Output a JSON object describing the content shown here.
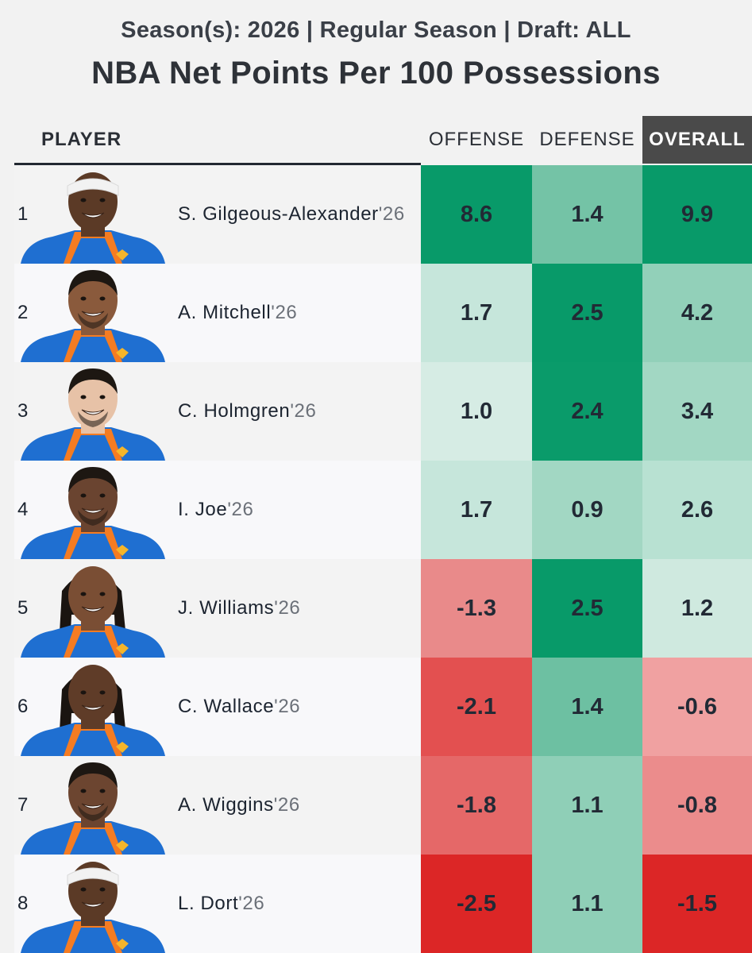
{
  "header": {
    "subtitle": "Season(s): 2026 | Regular Season | Draft: ALL",
    "title": "NBA Net Points Per 100 Possessions"
  },
  "columns": {
    "player": "PLAYER",
    "offense": "OFFENSE",
    "defense": "DEFENSE",
    "overall": "OVERALL"
  },
  "colors": {
    "green_strong": "#0a9b6a",
    "green_light": "#c7e7dc",
    "red_strong": "#dc2626",
    "red_light": "#f1a3a3",
    "header_active": "#4a4a4a"
  },
  "chart_data": {
    "type": "table",
    "columns": [
      "OFFENSE",
      "DEFENSE",
      "OVERALL"
    ],
    "rows": [
      {
        "rank": "1",
        "name": "S. Gilgeous-Alexander",
        "year": "'26",
        "offense": "8.6",
        "defense": "1.4",
        "overall": "9.9",
        "colors": [
          "#089a69",
          "#74c3a6",
          "#089a69"
        ],
        "skin": "#5b3a26",
        "hair": "none",
        "headband": true
      },
      {
        "rank": "2",
        "name": "A. Mitchell",
        "year": "'26",
        "offense": "1.7",
        "defense": "2.5",
        "overall": "4.2",
        "colors": [
          "#c6e6db",
          "#089a69",
          "#92d0b9"
        ],
        "skin": "#8a5a3c",
        "hair": "short",
        "headband": false
      },
      {
        "rank": "3",
        "name": "C. Holmgren",
        "year": "'26",
        "offense": "1.0",
        "defense": "2.4",
        "overall": "3.4",
        "colors": [
          "#d6ece4",
          "#0a9b6a",
          "#a2d7c3"
        ],
        "skin": "#e7c2a7",
        "hair": "short",
        "headband": false
      },
      {
        "rank": "4",
        "name": "I. Joe",
        "year": "'26",
        "offense": "1.7",
        "defense": "0.9",
        "overall": "2.6",
        "colors": [
          "#c6e6db",
          "#a2d7c3",
          "#b8e1d2"
        ],
        "skin": "#6a4430",
        "hair": "short",
        "headband": false
      },
      {
        "rank": "5",
        "name": "J. Williams",
        "year": "'26",
        "offense": "-1.3",
        "defense": "2.5",
        "overall": "1.2",
        "colors": [
          "#e98a8a",
          "#089a69",
          "#cfe9df"
        ],
        "skin": "#7a4e34",
        "hair": "locs",
        "headband": false
      },
      {
        "rank": "6",
        "name": "C. Wallace",
        "year": "'26",
        "offense": "-2.1",
        "defense": "1.4",
        "overall": "-0.6",
        "colors": [
          "#e35050",
          "#6dc0a2",
          "#f0a1a1"
        ],
        "skin": "#5f3c28",
        "hair": "locs",
        "headband": false
      },
      {
        "rank": "7",
        "name": "A. Wiggins",
        "year": "'26",
        "offense": "-1.8",
        "defense": "1.1",
        "overall": "-0.8",
        "colors": [
          "#e56868",
          "#8fcfb7",
          "#eb8c8c"
        ],
        "skin": "#6c4530",
        "hair": "short",
        "headband": false
      },
      {
        "rank": "8",
        "name": "L. Dort",
        "year": "'26",
        "offense": "-2.5",
        "defense": "1.1",
        "overall": "-1.5",
        "colors": [
          "#dc2626",
          "#8fcfb7",
          "#dc2626"
        ],
        "skin": "#5b3a26",
        "hair": "none",
        "headband": true
      }
    ]
  }
}
